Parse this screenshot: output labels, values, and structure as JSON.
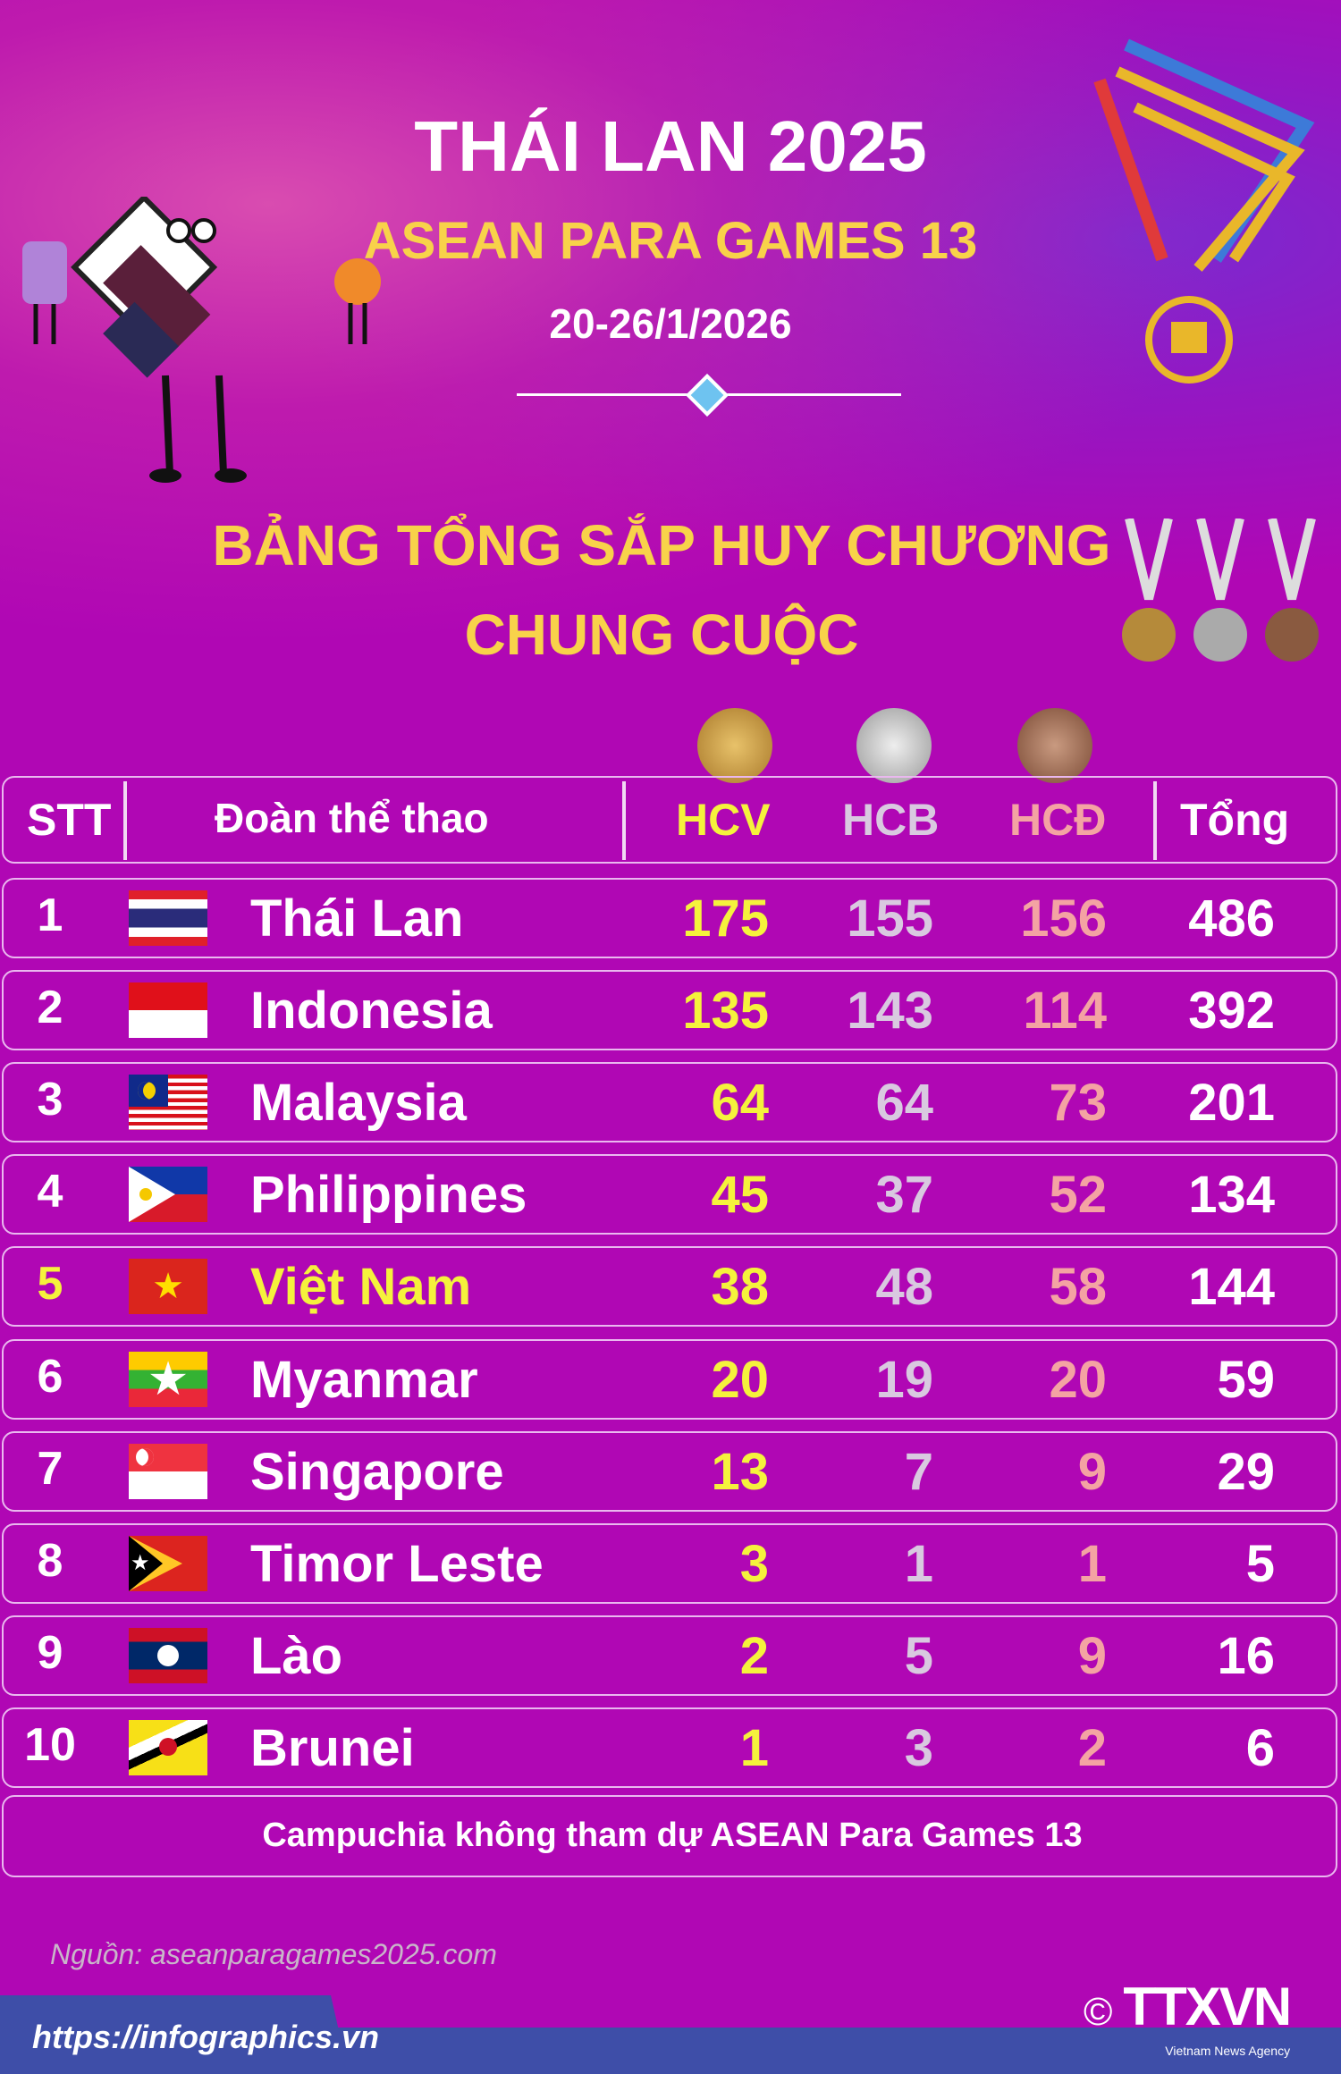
{
  "header": {
    "title": "THÁI LAN 2025",
    "subtitle": "ASEAN PARA GAMES 13",
    "dates": "20-26/1/2026"
  },
  "heading": {
    "line1": "BẢNG TỔNG SẮP HUY CHƯƠNG",
    "line2": "CHUNG CUỘC"
  },
  "colors": {
    "background": "#b007b4",
    "gold": "#f5f23c",
    "silver": "#d9c9e0",
    "bronze": "#f4a3a3",
    "highlight": "#f5f23c",
    "title_yellow": "#f8d24a"
  },
  "table": {
    "columns": {
      "rank": "STT",
      "team": "Đoàn thể thao",
      "gold": "HCV",
      "silver": "HCB",
      "bronze": "HCĐ",
      "total": "Tổng"
    },
    "rows": [
      {
        "rank": "1",
        "team": "Thái Lan",
        "flag": "thailand-flag",
        "gold": "175",
        "silver": "155",
        "bronze": "156",
        "total": "486"
      },
      {
        "rank": "2",
        "team": "Indonesia",
        "flag": "indonesia-flag",
        "gold": "135",
        "silver": "143",
        "bronze": "114",
        "total": "392"
      },
      {
        "rank": "3",
        "team": "Malaysia",
        "flag": "malaysia-flag",
        "gold": "64",
        "silver": "64",
        "bronze": "73",
        "total": "201"
      },
      {
        "rank": "4",
        "team": "Philippines",
        "flag": "philippines-flag",
        "gold": "45",
        "silver": "37",
        "bronze": "52",
        "total": "134"
      },
      {
        "rank": "5",
        "team": "Việt Nam",
        "flag": "vietnam-flag",
        "gold": "38",
        "silver": "48",
        "bronze": "58",
        "total": "144",
        "highlight": true
      },
      {
        "rank": "6",
        "team": "Myanmar",
        "flag": "myanmar-flag",
        "gold": "20",
        "silver": "19",
        "bronze": "20",
        "total": "59"
      },
      {
        "rank": "7",
        "team": "Singapore",
        "flag": "singapore-flag",
        "gold": "13",
        "silver": "7",
        "bronze": "9",
        "total": "29"
      },
      {
        "rank": "8",
        "team": "Timor Leste",
        "flag": "timor-leste-flag",
        "gold": "3",
        "silver": "1",
        "bronze": "1",
        "total": "5"
      },
      {
        "rank": "9",
        "team": "Lào",
        "flag": "laos-flag",
        "gold": "2",
        "silver": "5",
        "bronze": "9",
        "total": "16"
      },
      {
        "rank": "10",
        "team": "Brunei",
        "flag": "brunei-flag",
        "gold": "1",
        "silver": "3",
        "bronze": "2",
        "total": "6"
      }
    ],
    "note": "Campuchia không tham dự ASEAN Para Games 13"
  },
  "footer": {
    "source": "Nguồn: aseanparagames2025.com",
    "url": "https://infographics.vn",
    "logo": "TTXVN",
    "logo_tagline": "Vietnam News Agency",
    "copyright": "©"
  }
}
